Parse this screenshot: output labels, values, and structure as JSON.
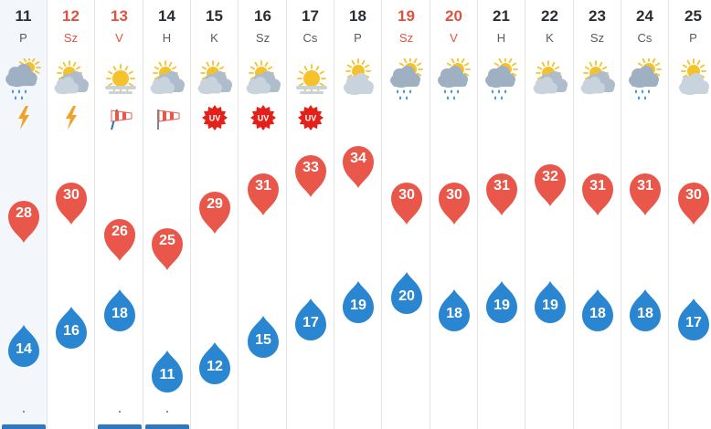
{
  "days": [
    {
      "date": "11",
      "dow": "P",
      "weekend": false,
      "weather": "rain-thunder-icon",
      "extra": "lightning-icon",
      "high": 28,
      "low": 14,
      "dot": true,
      "bar": true
    },
    {
      "date": "12",
      "dow": "Sz",
      "weekend": true,
      "weather": "partly-cloudy-icon",
      "extra": "lightning-icon",
      "high": 30,
      "low": 16,
      "dot": false,
      "bar": false
    },
    {
      "date": "13",
      "dow": "V",
      "weekend": true,
      "weather": "sunny-haze-icon",
      "extra": "windsock-icon-strong",
      "high": 26,
      "low": 18,
      "dot": true,
      "bar": true
    },
    {
      "date": "14",
      "dow": "H",
      "weekend": false,
      "weather": "partly-cloudy-icon",
      "extra": "windsock-icon",
      "high": 25,
      "low": 11,
      "dot": true,
      "bar": true
    },
    {
      "date": "15",
      "dow": "K",
      "weekend": false,
      "weather": "partly-cloudy-icon",
      "extra": "uv-icon",
      "high": 29,
      "low": 12,
      "dot": false,
      "bar": false
    },
    {
      "date": "16",
      "dow": "Sz",
      "weekend": false,
      "weather": "partly-cloudy-icon",
      "extra": "uv-icon",
      "high": 31,
      "low": 15,
      "dot": false,
      "bar": false
    },
    {
      "date": "17",
      "dow": "Cs",
      "weekend": false,
      "weather": "sunny-haze-icon",
      "extra": "uv-icon",
      "high": 33,
      "low": 17,
      "dot": false,
      "bar": false
    },
    {
      "date": "18",
      "dow": "P",
      "weekend": false,
      "weather": "cloudy-sun-icon",
      "extra": "",
      "high": 34,
      "low": 19,
      "dot": false,
      "bar": false
    },
    {
      "date": "19",
      "dow": "Sz",
      "weekend": true,
      "weather": "rain-sun-icon",
      "extra": "",
      "high": 30,
      "low": 20,
      "dot": false,
      "bar": false
    },
    {
      "date": "20",
      "dow": "V",
      "weekend": true,
      "weather": "rain-sun-icon",
      "extra": "",
      "high": 30,
      "low": 18,
      "dot": false,
      "bar": false
    },
    {
      "date": "21",
      "dow": "H",
      "weekend": false,
      "weather": "rain-sun-icon",
      "extra": "",
      "high": 31,
      "low": 19,
      "dot": false,
      "bar": false
    },
    {
      "date": "22",
      "dow": "K",
      "weekend": false,
      "weather": "partly-cloudy-icon",
      "extra": "",
      "high": 32,
      "low": 19,
      "dot": false,
      "bar": false
    },
    {
      "date": "23",
      "dow": "Sz",
      "weekend": false,
      "weather": "partly-cloudy-icon",
      "extra": "",
      "high": 31,
      "low": 18,
      "dot": false,
      "bar": false
    },
    {
      "date": "24",
      "dow": "Cs",
      "weekend": false,
      "weather": "rain-sun-icon",
      "extra": "",
      "high": 31,
      "low": 18,
      "dot": false,
      "bar": false
    },
    {
      "date": "25",
      "dow": "P",
      "weekend": false,
      "weather": "cloudy-sun-icon",
      "extra": "",
      "high": 30,
      "low": 17,
      "dot": false,
      "bar": false
    }
  ],
  "uv_label": "UV",
  "colors": {
    "high_pin": "#e8574a",
    "low_drop": "#2a86d1",
    "weekend_text": "#e0523e",
    "uv_red": "#e3211b",
    "lightning": "#f2a12b",
    "sun": "#f6c22c",
    "cloud": "#c8d3de",
    "rain": "#2a86d1"
  }
}
